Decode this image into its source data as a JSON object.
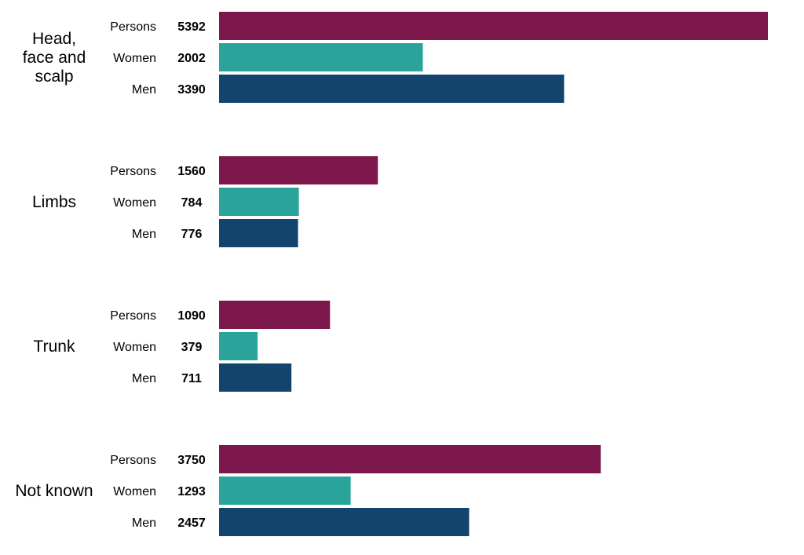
{
  "chart_data": {
    "type": "bar",
    "orientation": "horizontal",
    "categories": [
      "Head, face and scalp",
      "Limbs",
      "Trunk",
      "Not known"
    ],
    "category_lines": [
      [
        "Head,",
        "face and",
        "scalp"
      ],
      [
        "Limbs"
      ],
      [
        "Trunk"
      ],
      [
        "Not known"
      ]
    ],
    "series": [
      {
        "name": "Persons",
        "color": "#7B174B",
        "values": [
          5392,
          1560,
          1090,
          3750
        ]
      },
      {
        "name": "Women",
        "color": "#2AA39A",
        "values": [
          2002,
          784,
          379,
          1293
        ]
      },
      {
        "name": "Men",
        "color": "#13446D",
        "values": [
          3390,
          776,
          711,
          2457
        ]
      }
    ],
    "xlim": [
      0,
      5392
    ],
    "grid": false,
    "data_labels": true
  }
}
